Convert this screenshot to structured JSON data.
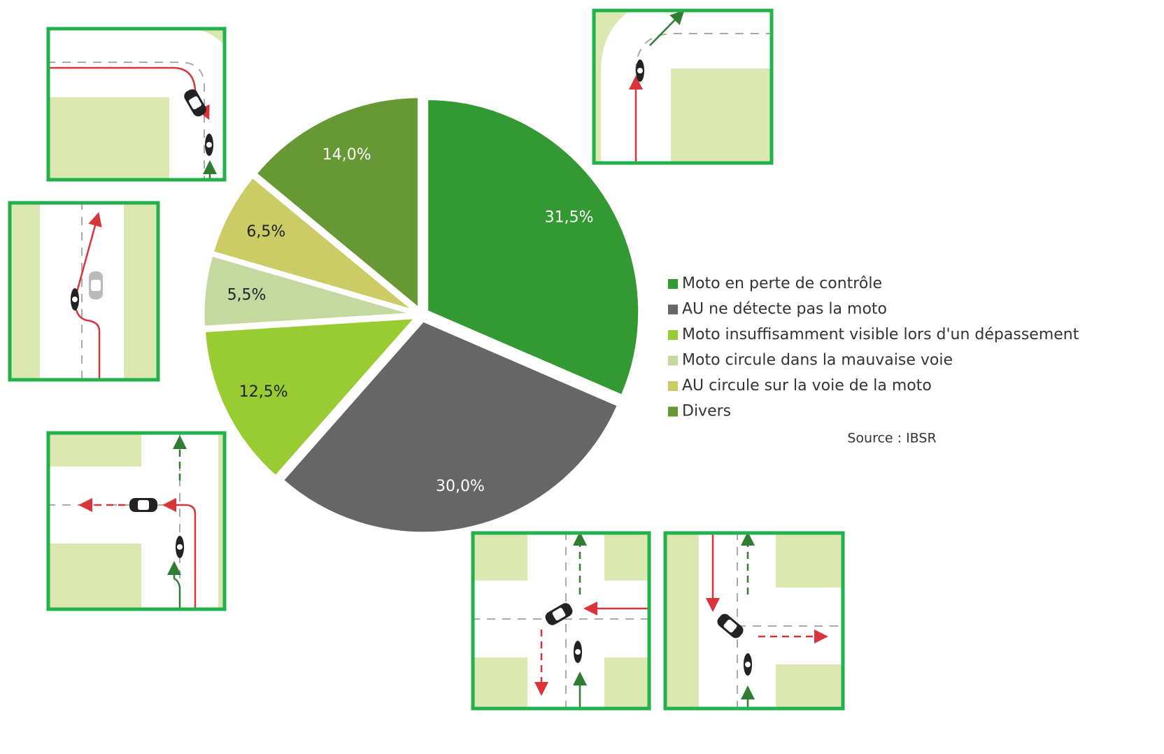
{
  "chart_data": {
    "type": "pie",
    "categories": [
      "Moto en perte de contrôle",
      "AU ne détecte pas la moto",
      "Moto insuffisamment visible lors d'un dépassement",
      "Moto circule dans la mauvaise voie",
      "AU circule sur la voie de la moto",
      "Divers"
    ],
    "values": [
      31.5,
      30.0,
      12.5,
      5.5,
      6.5,
      14.0
    ],
    "value_labels": [
      "31,5%",
      "30,0%",
      "12,5%",
      "5,5%",
      "6,5%",
      "14,0%"
    ],
    "colors": [
      "#339933",
      "#666666",
      "#99cc33",
      "#c4d9a0",
      "#cccc66",
      "#669933"
    ],
    "legend": "right",
    "source": "Source : IBSR"
  }
}
